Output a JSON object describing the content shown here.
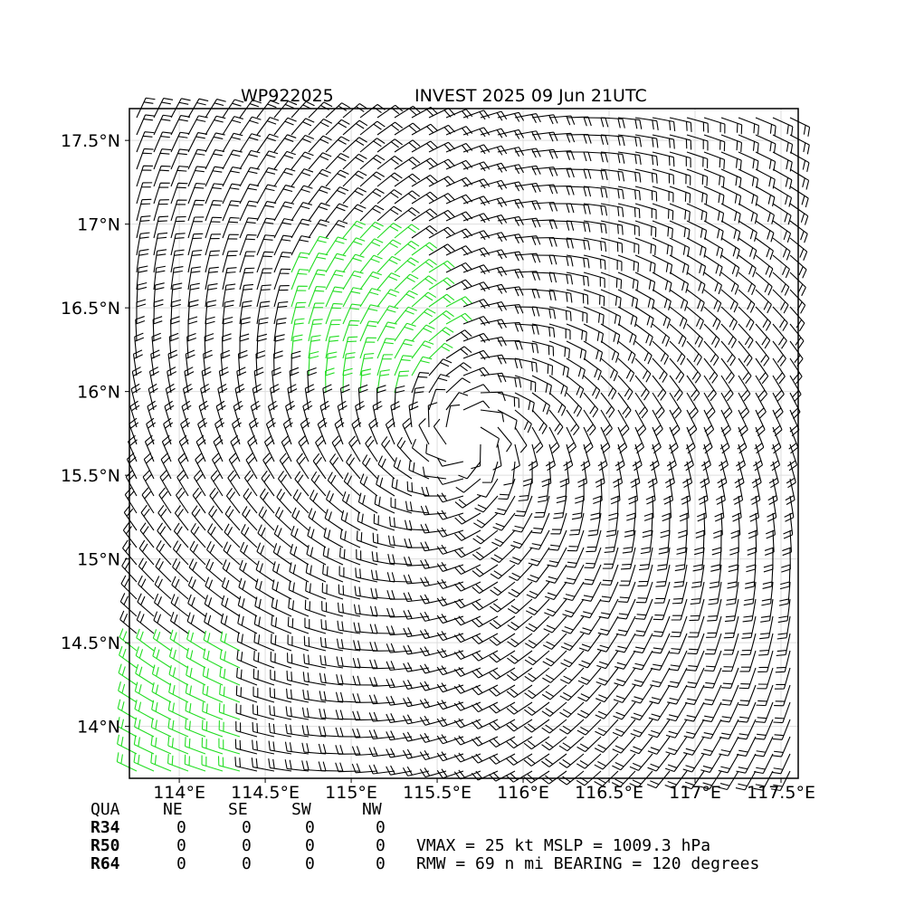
{
  "chart_data": {
    "type": "barbs",
    "title_left": "WP922025",
    "title_right": "INVEST 2025 09 Jun 21UTC",
    "xlim": [
      113.71,
      117.6
    ],
    "ylim": [
      13.69,
      17.69
    ],
    "xticks": [
      {
        "value": 114,
        "label": "114°E"
      },
      {
        "value": 114.5,
        "label": "114.5°E"
      },
      {
        "value": 115,
        "label": "115°E"
      },
      {
        "value": 115.5,
        "label": "115.5°E"
      },
      {
        "value": 116,
        "label": "116°E"
      },
      {
        "value": 116.5,
        "label": "116.5°E"
      },
      {
        "value": 117,
        "label": "117°E"
      },
      {
        "value": 117.5,
        "label": "117.5°E"
      }
    ],
    "yticks": [
      {
        "value": 14,
        "label": "14°N"
      },
      {
        "value": 14.5,
        "label": "14.5°N"
      },
      {
        "value": 15,
        "label": "15°N"
      },
      {
        "value": 15.5,
        "label": "15.5°N"
      },
      {
        "value": 16,
        "label": "16°N"
      },
      {
        "value": 16.5,
        "label": "16.5°N"
      },
      {
        "value": 17,
        "label": "17°N"
      },
      {
        "value": 17.5,
        "label": "17.5°N"
      }
    ],
    "grid": true,
    "table": {
      "header": [
        "QUA",
        "NE",
        "SE",
        "SW",
        "NW"
      ],
      "rows": [
        [
          "R34",
          0,
          0,
          0,
          0
        ],
        [
          "R50",
          0,
          0,
          0,
          0
        ],
        [
          "R64",
          0,
          0,
          0,
          0
        ]
      ]
    },
    "info": [
      "VMAX =  25 kt MSLP = 1009.3 hPa",
      "RMW =  69 n mi BEARING = 120 degrees"
    ]
  }
}
